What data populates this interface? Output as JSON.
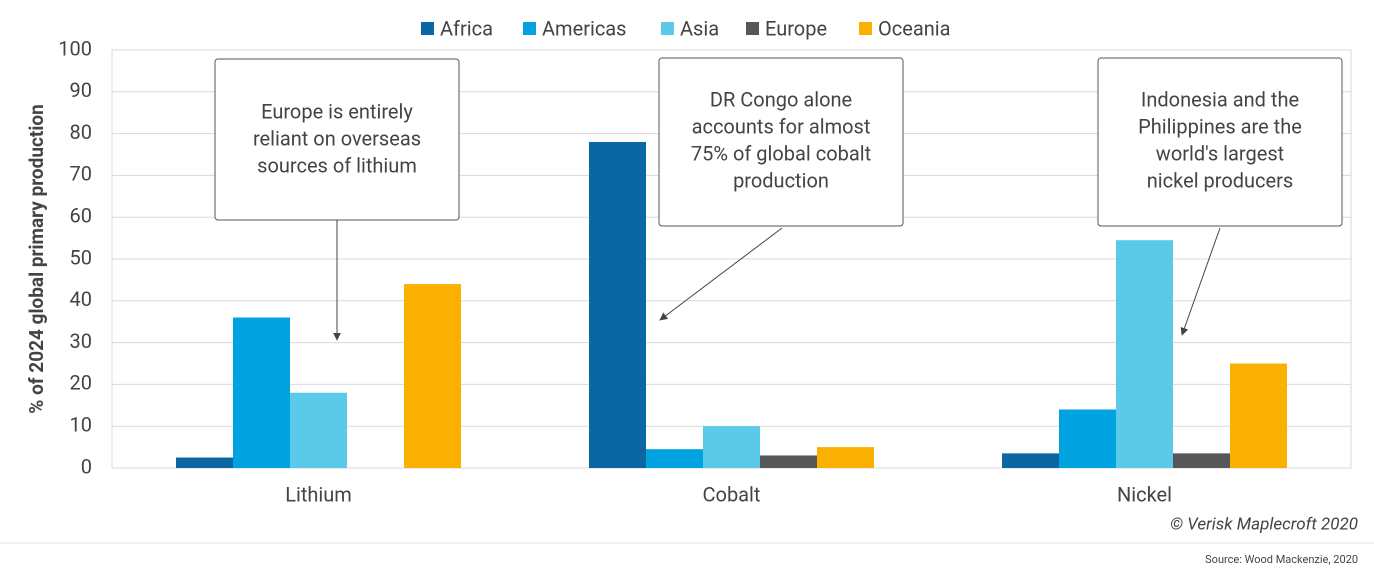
{
  "chart_data": {
    "type": "bar",
    "y_label": "% of 2024 global primary production",
    "categories": [
      "Lithium",
      "Cobalt",
      "Nickel"
    ],
    "series": [
      {
        "name": "Africa",
        "color": "#0a67a3",
        "values": [
          2.5,
          78,
          3.5
        ]
      },
      {
        "name": "Americas",
        "color": "#00a3df",
        "values": [
          36,
          4.5,
          14
        ]
      },
      {
        "name": "Asia",
        "color": "#5bc9e8",
        "values": [
          18,
          10,
          54.5
        ]
      },
      {
        "name": "Europe",
        "color": "#555759",
        "values": [
          0,
          3,
          3.5
        ]
      },
      {
        "name": "Oceania",
        "color": "#f9b000",
        "values": [
          44,
          5,
          25
        ]
      }
    ],
    "ylim": [
      0,
      100
    ],
    "yticks": [
      0,
      10,
      20,
      30,
      40,
      50,
      60,
      70,
      80,
      90,
      100
    ],
    "grid": true,
    "legend": "top",
    "annotations": [
      [
        "Europe is entirely",
        "reliant on overseas",
        "sources of lithium"
      ],
      [
        "DR Congo alone",
        "accounts for almost",
        "75% of global cobalt",
        "production"
      ],
      [
        "Indonesia and the",
        "Philippines are the",
        "world's largest",
        "nickel producers"
      ]
    ],
    "copyright": "© Verisk Maplecroft 2020",
    "source": "Source: Wood Mackenzie, 2020"
  }
}
